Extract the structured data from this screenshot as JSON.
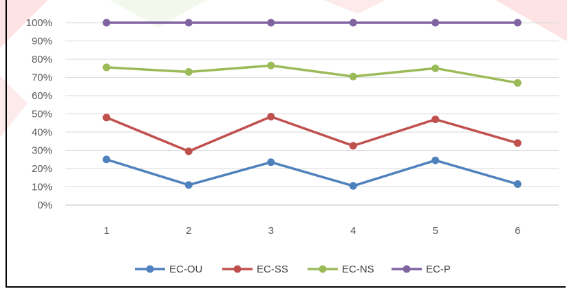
{
  "chart_data": {
    "type": "line",
    "title": "",
    "xlabel": "",
    "ylabel": "",
    "categories": [
      "1",
      "2",
      "3",
      "4",
      "5",
      "6"
    ],
    "ylim": [
      0,
      100
    ],
    "y_ticks": [
      "0%",
      "10%",
      "20%",
      "30%",
      "40%",
      "50%",
      "60%",
      "70%",
      "80%",
      "90%",
      "100%"
    ],
    "y_tick_values": [
      0,
      10,
      20,
      30,
      40,
      50,
      60,
      70,
      80,
      90,
      100
    ],
    "grid": true,
    "legend_position": "bottom",
    "series": [
      {
        "name": "EC-OU",
        "color": "#4f81bd",
        "values": [
          25,
          11,
          23.5,
          10.5,
          24.5,
          11.5
        ]
      },
      {
        "name": "EC-SS",
        "color": "#c0504d",
        "values": [
          48,
          29.5,
          48.5,
          32.5,
          47,
          34
        ]
      },
      {
        "name": "EC-NS",
        "color": "#9bbb59",
        "values": [
          75.5,
          73,
          76.5,
          70.5,
          75,
          67
        ]
      },
      {
        "name": "EC-P",
        "color": "#8064a2",
        "values": [
          100,
          100,
          100,
          100,
          100,
          100
        ]
      }
    ]
  }
}
